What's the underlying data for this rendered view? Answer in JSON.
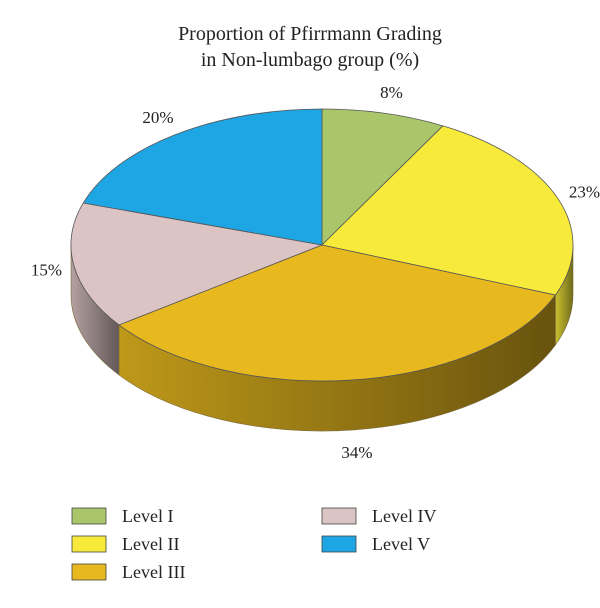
{
  "chart_data": {
    "type": "pie",
    "title_lines": [
      "Proportion of Pfirrmann Grading",
      "in Non-lumbago group (%)"
    ],
    "slices": [
      {
        "label": "Level I",
        "value": 8,
        "value_label": "8%",
        "color": "#a9c66b"
      },
      {
        "label": "Level II",
        "value": 23,
        "value_label": "23%",
        "color": "#f7ea3a"
      },
      {
        "label": "Level III",
        "value": 34,
        "value_label": "34%",
        "color": "#e8b91e"
      },
      {
        "label": "Level IV",
        "value": 15,
        "value_label": "15%",
        "color": "#dcc3c4"
      },
      {
        "label": "Level V",
        "value": 20,
        "value_label": "20%",
        "color": "#1ea5e3"
      }
    ],
    "legend_placement": "bottom",
    "style": "3d-pie"
  }
}
